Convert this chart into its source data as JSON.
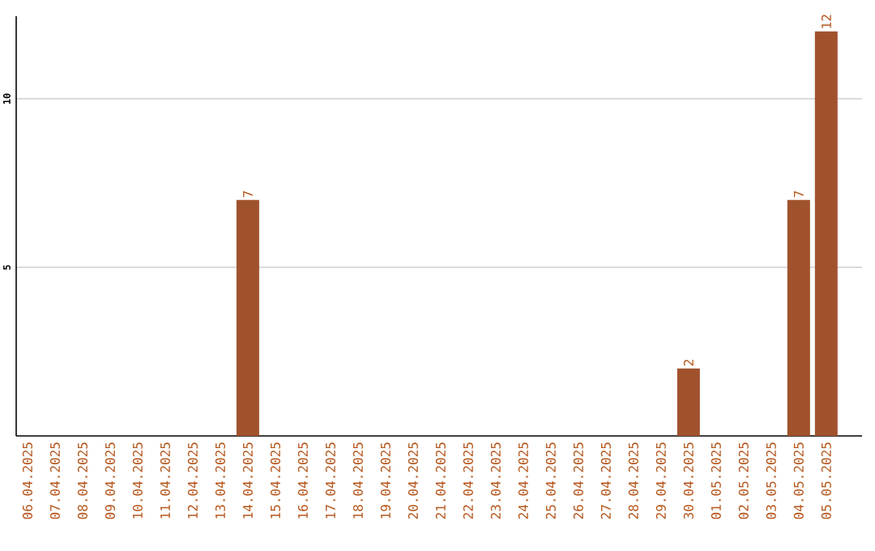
{
  "chart_data": {
    "type": "bar",
    "categories": [
      "06.04.2025",
      "07.04.2025",
      "08.04.2025",
      "09.04.2025",
      "10.04.2025",
      "11.04.2025",
      "12.04.2025",
      "13.04.2025",
      "14.04.2025",
      "15.04.2025",
      "16.04.2025",
      "17.04.2025",
      "18.04.2025",
      "19.04.2025",
      "20.04.2025",
      "21.04.2025",
      "22.04.2025",
      "23.04.2025",
      "24.04.2025",
      "25.04.2025",
      "26.04.2025",
      "27.04.2025",
      "28.04.2025",
      "29.04.2025",
      "30.04.2025",
      "01.05.2025",
      "02.05.2025",
      "03.05.2025",
      "04.05.2025",
      "05.05.2025"
    ],
    "values": [
      0,
      0,
      0,
      0,
      0,
      0,
      0,
      0,
      7,
      0,
      0,
      0,
      0,
      0,
      0,
      0,
      0,
      0,
      0,
      0,
      0,
      0,
      0,
      0,
      2,
      0,
      0,
      0,
      7,
      12
    ],
    "value_labels": [
      null,
      null,
      null,
      null,
      null,
      null,
      null,
      null,
      "7",
      null,
      null,
      null,
      null,
      null,
      null,
      null,
      null,
      null,
      null,
      null,
      null,
      null,
      null,
      null,
      "2",
      null,
      null,
      null,
      "7",
      "12"
    ],
    "color": "#a0522d",
    "ylim": [
      0,
      12.45
    ],
    "yticks": [
      5,
      10
    ],
    "grid": "y"
  }
}
